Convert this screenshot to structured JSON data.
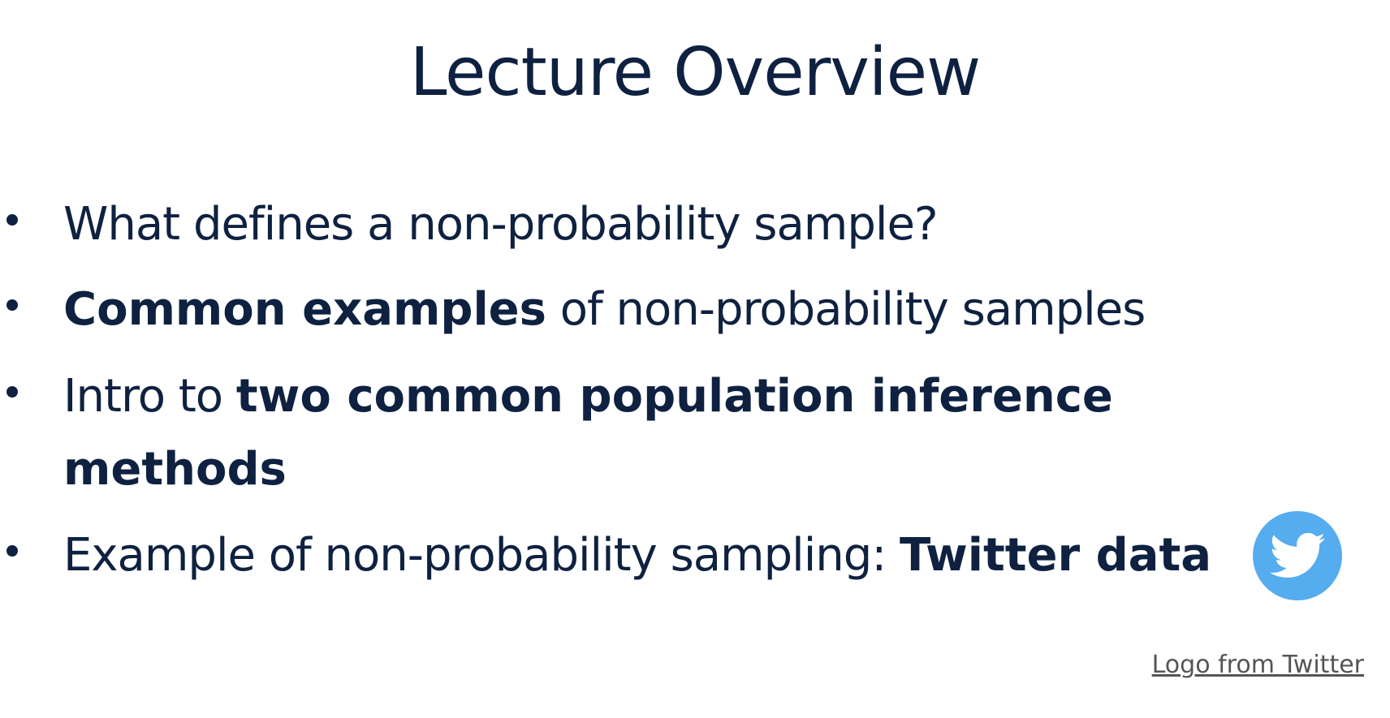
{
  "slide": {
    "title": "Lecture Overview",
    "bullets": [
      {
        "segments": [
          {
            "text": "What defines a non-probability sample?",
            "bold": false
          }
        ]
      },
      {
        "segments": [
          {
            "text": "Common examples",
            "bold": true
          },
          {
            "text": " of non-probability samples",
            "bold": false
          }
        ]
      },
      {
        "segments": [
          {
            "text": "Intro to ",
            "bold": false
          },
          {
            "text": "two common population inference methods",
            "bold": true
          }
        ]
      },
      {
        "segments": [
          {
            "text": "Example of non-probability sampling: ",
            "bold": false
          },
          {
            "text": "Twitter data",
            "bold": true
          }
        ]
      }
    ],
    "logo_icon": "twitter-bird-icon",
    "credit_link": "Logo from Twitter"
  },
  "colors": {
    "text": "#0f2140",
    "twitter_blue": "#55acee",
    "credit": "#555555",
    "background": "#ffffff"
  }
}
